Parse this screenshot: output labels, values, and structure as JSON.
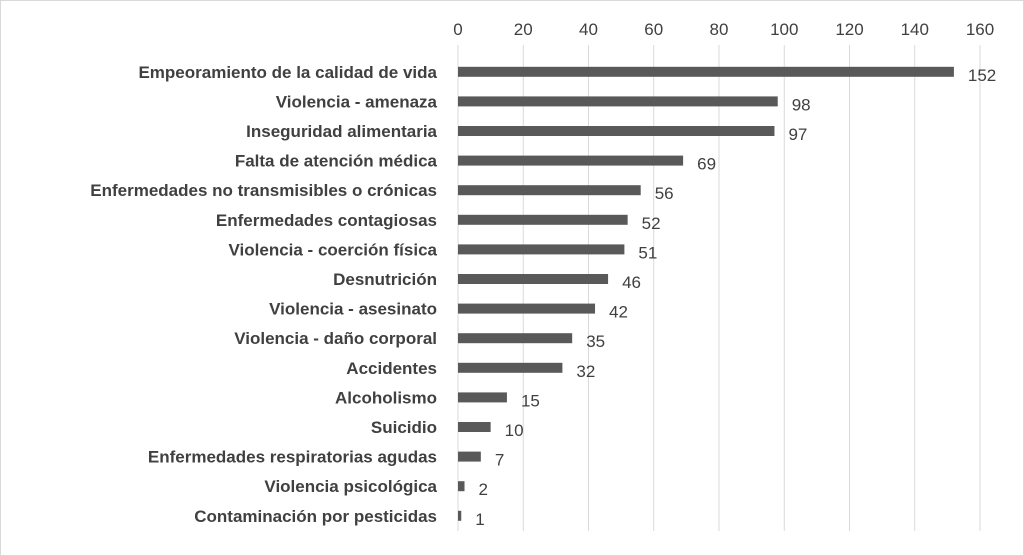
{
  "chart_data": {
    "type": "bar",
    "orientation": "horizontal",
    "title": "",
    "xlabel": "",
    "ylabel": "",
    "xlim": [
      0,
      160
    ],
    "ticks": [
      "0",
      "20",
      "40",
      "60",
      "80",
      "100",
      "120",
      "140",
      "160"
    ],
    "grid": true,
    "x_axis_position": "top",
    "bar_color": "#595959",
    "categories": [
      "Empeoramiento de la calidad de vida",
      "Violencia - amenaza",
      "Inseguridad alimentaria",
      "Falta de atención médica",
      "Enfermedades no transmisibles o crónicas",
      "Enfermedades contagiosas",
      "Violencia - coerción física",
      "Desnutrición",
      "Violencia - asesinato",
      "Violencia - daño corporal",
      "Accidentes",
      "Alcoholismo",
      "Suicidio",
      "Enfermedades respiratorias agudas",
      "Violencia psicológica",
      "Contaminación por pesticidas"
    ],
    "values": [
      152,
      98,
      97,
      69,
      56,
      52,
      51,
      46,
      42,
      35,
      32,
      15,
      10,
      7,
      2,
      1
    ]
  }
}
